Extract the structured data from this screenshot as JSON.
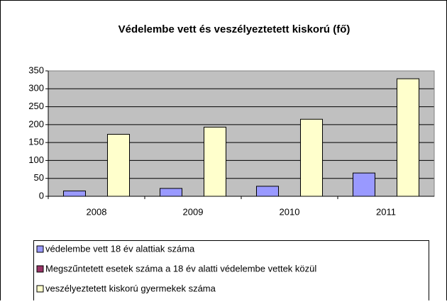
{
  "chart_data": {
    "type": "bar",
    "title": "Védelembe vett és veszélyeztetett kiskorú (fő)",
    "categories": [
      "2008",
      "2009",
      "2010",
      "2011"
    ],
    "series": [
      {
        "name": "védelembe vett 18 év alattiak száma",
        "color": "#9999ff",
        "values": [
          15,
          22,
          28,
          65
        ]
      },
      {
        "name": "Megszűntetett esetek száma a 18 év alatti védelembe vettek közül",
        "color": "#993366",
        "values": [
          0,
          0,
          0,
          0
        ]
      },
      {
        "name": "veszélyeztetett kiskorú gyermekek száma",
        "color": "#ffffcc",
        "values": [
          173,
          193,
          215,
          328
        ]
      }
    ],
    "ylim": [
      0,
      350
    ],
    "yticks": [
      0,
      50,
      100,
      150,
      200,
      250,
      300,
      350
    ],
    "grid": true,
    "legend": "bottom"
  }
}
